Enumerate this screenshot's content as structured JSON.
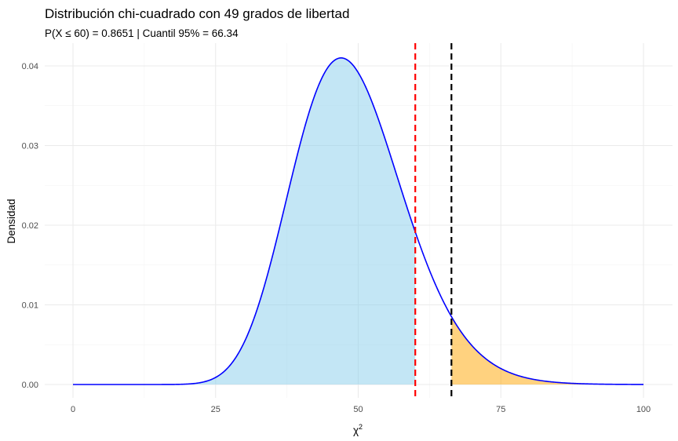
{
  "chart_data": {
    "type": "area",
    "title": "Distribución chi-cuadrado con 49 grados de libertad",
    "subtitle": "P(X ≤ 60) = 0.8651 | Cuantil 95% = 66.34",
    "xlabel": "χ",
    "xlabel_superscript": "2",
    "ylabel": "Densidad",
    "degrees_of_freedom": 49,
    "xlim": [
      0,
      100
    ],
    "ylim": [
      0,
      0.0425
    ],
    "x_ticks": [
      0,
      25,
      50,
      75,
      100
    ],
    "y_ticks": [
      0.0,
      0.01,
      0.02,
      0.03,
      0.04
    ],
    "y_tick_labels": [
      "0.00",
      "0.01",
      "0.02",
      "0.03",
      "0.04"
    ],
    "grid": true,
    "density_points": [
      {
        "x": 0,
        "y": 0.0
      },
      {
        "x": 15,
        "y": 3e-05
      },
      {
        "x": 20,
        "y": 0.0002
      },
      {
        "x": 25,
        "y": 0.0013
      },
      {
        "x": 30,
        "y": 0.0055
      },
      {
        "x": 35,
        "y": 0.0165
      },
      {
        "x": 40,
        "y": 0.0313
      },
      {
        "x": 45,
        "y": 0.0404
      },
      {
        "x": 47,
        "y": 0.0411
      },
      {
        "x": 50,
        "y": 0.0385
      },
      {
        "x": 55,
        "y": 0.029
      },
      {
        "x": 60,
        "y": 0.019
      },
      {
        "x": 66.34,
        "y": 0.0085
      },
      {
        "x": 70,
        "y": 0.0052
      },
      {
        "x": 75,
        "y": 0.0021
      },
      {
        "x": 80,
        "y": 0.0008
      },
      {
        "x": 90,
        "y": 9e-05
      },
      {
        "x": 100,
        "y": 0.0
      }
    ],
    "shaded_regions": [
      {
        "from": 0,
        "to": 60,
        "color": "#87ceeb",
        "opacity": 0.5
      },
      {
        "from": 66.34,
        "to": 100,
        "color": "#ffa500",
        "opacity": 0.5
      }
    ],
    "reference_lines": [
      {
        "x": 60,
        "color": "#ff0000",
        "style": "dashed"
      },
      {
        "x": 66.34,
        "color": "#000000",
        "style": "dashed"
      }
    ],
    "curve_color": "#0000ff"
  }
}
